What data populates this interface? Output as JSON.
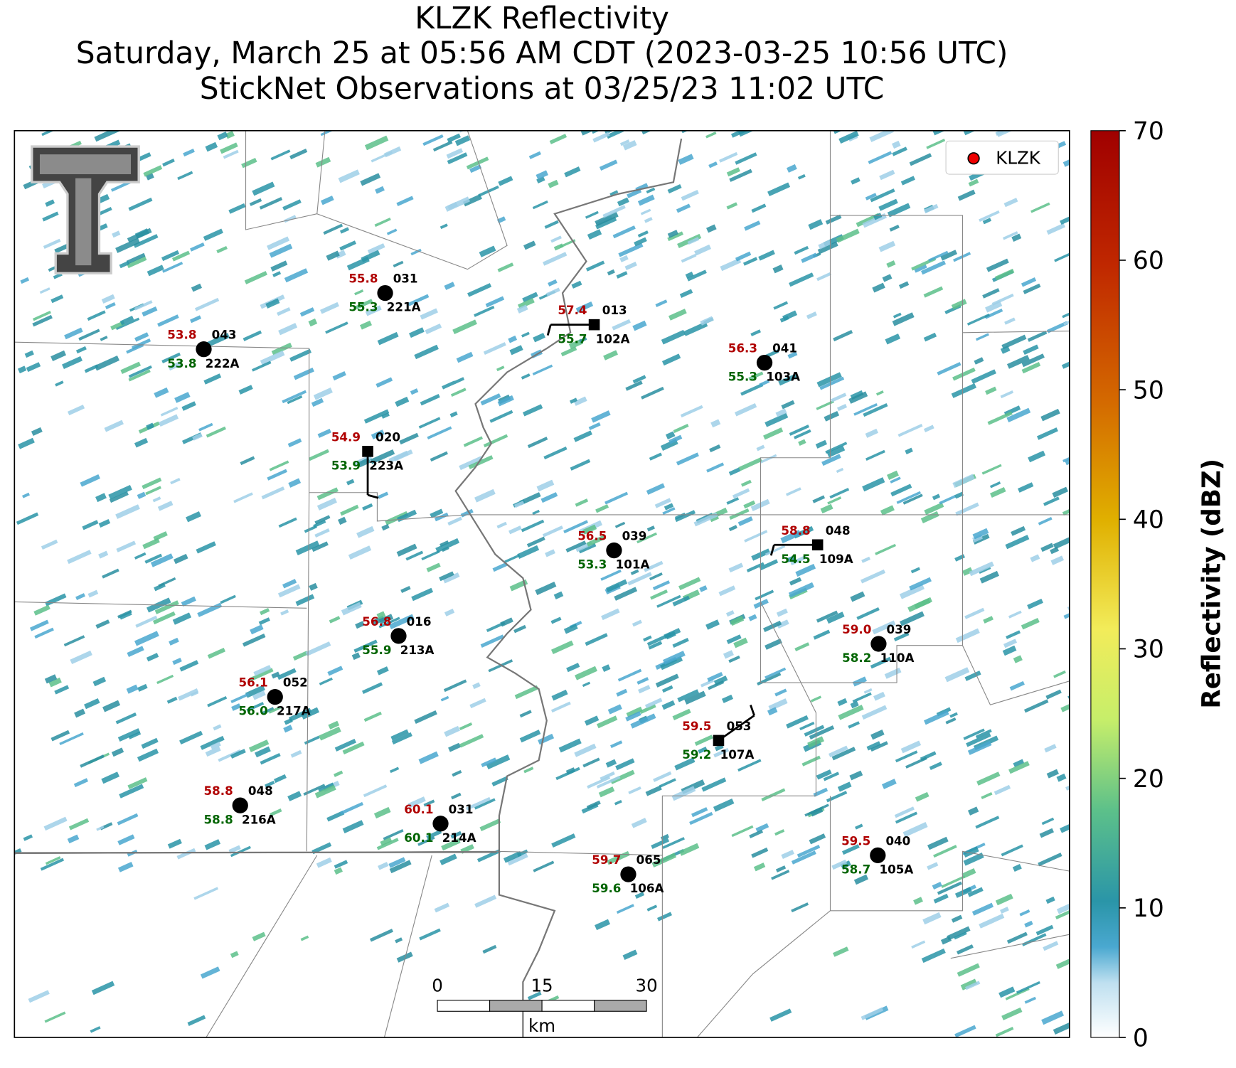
{
  "header": {
    "title": [
      "KLZK Reflectivity",
      "Saturday, March 25 at 05:56 AM CDT (2023-03-25 10:56 UTC)",
      "StickNet Observations at 03/25/23 11:02 UTC"
    ]
  },
  "map": {
    "legend": "KLZK",
    "stations": [
      {
        "temp": "55.8",
        "dew": "55.3",
        "code": "031",
        "id": "221A"
      },
      {
        "temp": "57.4",
        "dew": "55.7",
        "code": "013",
        "id": "102A"
      },
      {
        "temp": "53.8",
        "dew": "53.8",
        "code": "043",
        "id": "222A"
      },
      {
        "temp": "56.3",
        "dew": "55.3",
        "code": "041",
        "id": "103A"
      },
      {
        "temp": "54.9",
        "dew": "53.9",
        "code": "020",
        "id": "223A"
      },
      {
        "temp": "56.5",
        "dew": "53.3",
        "code": "039",
        "id": "101A"
      },
      {
        "temp": "58.8",
        "dew": "54.5",
        "code": "048",
        "id": "109A"
      },
      {
        "temp": "56.8",
        "dew": "55.9",
        "code": "016",
        "id": "213A"
      },
      {
        "temp": "59.0",
        "dew": "58.2",
        "code": "039",
        "id": "110A"
      },
      {
        "temp": "56.1",
        "dew": "56.0",
        "code": "052",
        "id": "217A"
      },
      {
        "temp": "59.5",
        "dew": "59.2",
        "code": "053",
        "id": "107A"
      },
      {
        "temp": "58.8",
        "dew": "58.8",
        "code": "048",
        "id": "216A"
      },
      {
        "temp": "60.1",
        "dew": "60.1",
        "code": "031",
        "id": "214A"
      },
      {
        "temp": "59.7",
        "dew": "59.6",
        "code": "065",
        "id": "106A"
      },
      {
        "temp": "59.5",
        "dew": "58.7",
        "code": "040",
        "id": "105A"
      }
    ],
    "scalebar": {
      "ticks": [
        "0",
        "15",
        "30"
      ],
      "unit": "km"
    }
  },
  "colorbar": {
    "label": "Reflectivity (dBZ)",
    "lim": [
      0,
      70
    ],
    "ticks": [
      0,
      10,
      20,
      30,
      40,
      50,
      60,
      70
    ]
  }
}
